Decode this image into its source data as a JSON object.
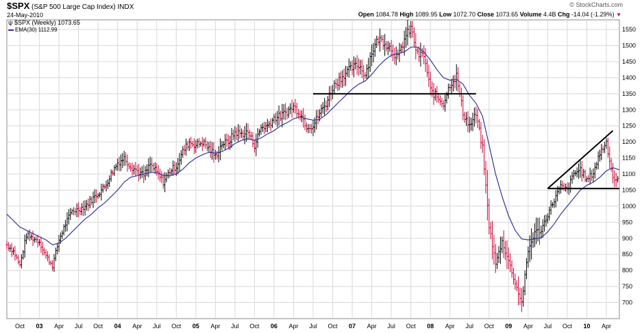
{
  "header": {
    "symbol": "$SPX",
    "name": "(S&P 500 Large Cap Index)",
    "exchange": "INDX",
    "date": "24-May-2010",
    "brand": "© StockCharts.com",
    "open_label": "Open",
    "open_value": "1084.78",
    "high_label": "High",
    "high_value": "1089.95",
    "low_label": "Low",
    "low_value": "1072.70",
    "close_label": "Close",
    "close_value": "1073.65",
    "volume_label": "Volume",
    "volume_value": "4.4B",
    "chg_label": "Chg",
    "chg_value": "-14.04 (-1.29%)",
    "chg_marker": "▼"
  },
  "legend": {
    "price": "$SPX (Weekly) 1073.65",
    "ema": "EMA(30) 1112.99"
  },
  "colors": {
    "up_bar": "#000000",
    "down_bar": "#cc0033",
    "ema": "#333399",
    "grid": "#d8d8d8",
    "trendline": "#000000"
  },
  "chart_data": {
    "type": "line",
    "frequency": "weekly",
    "ylim": [
      650,
      1580
    ],
    "yticks": [
      700,
      750,
      800,
      850,
      900,
      950,
      1000,
      1050,
      1100,
      1150,
      1200,
      1250,
      1300,
      1350,
      1400,
      1450,
      1500,
      1550
    ],
    "grid": true,
    "x_tick_labels": [
      "Oct",
      "03",
      "Apr",
      "Jul",
      "Oct",
      "04",
      "Apr",
      "Jul",
      "Oct",
      "05",
      "Apr",
      "Jul",
      "Oct",
      "06",
      "Apr",
      "Jul",
      "Oct",
      "07",
      "Apr",
      "Jul",
      "Oct",
      "08",
      "Apr",
      "Jul",
      "Oct",
      "09",
      "Apr",
      "Jul",
      "Oct",
      "10",
      "Apr"
    ],
    "x_tick_dates": [
      "2002-10",
      "2003-01",
      "2003-04",
      "2003-07",
      "2003-10",
      "2004-01",
      "2004-04",
      "2004-07",
      "2004-10",
      "2005-01",
      "2005-04",
      "2005-07",
      "2005-10",
      "2006-01",
      "2006-04",
      "2006-07",
      "2006-10",
      "2007-01",
      "2007-04",
      "2007-07",
      "2007-10",
      "2008-01",
      "2008-04",
      "2008-07",
      "2008-10",
      "2009-01",
      "2009-04",
      "2009-07",
      "2009-10",
      "2010-01",
      "2010-04"
    ],
    "xlim": [
      "2002-08",
      "2010-06"
    ],
    "price_path": [
      [
        "2002-08",
        880
      ],
      [
        "2002-09",
        860
      ],
      [
        "2002-10",
        815
      ],
      [
        "2002-11",
        910
      ],
      [
        "2002-12",
        900
      ],
      [
        "2003-01",
        890
      ],
      [
        "2003-02",
        845
      ],
      [
        "2003-03",
        815
      ],
      [
        "2003-04",
        895
      ],
      [
        "2003-05",
        945
      ],
      [
        "2003-06",
        985
      ],
      [
        "2003-07",
        990
      ],
      [
        "2003-08",
        1000
      ],
      [
        "2003-09",
        1020
      ],
      [
        "2003-10",
        1040
      ],
      [
        "2003-11",
        1060
      ],
      [
        "2003-12",
        1100
      ],
      [
        "2004-01",
        1135
      ],
      [
        "2004-02",
        1150
      ],
      [
        "2004-03",
        1125
      ],
      [
        "2004-04",
        1110
      ],
      [
        "2004-05",
        1095
      ],
      [
        "2004-06",
        1130
      ],
      [
        "2004-07",
        1105
      ],
      [
        "2004-08",
        1075
      ],
      [
        "2004-09",
        1110
      ],
      [
        "2004-10",
        1125
      ],
      [
        "2004-11",
        1170
      ],
      [
        "2004-12",
        1200
      ],
      [
        "2005-01",
        1190
      ],
      [
        "2005-02",
        1200
      ],
      [
        "2005-03",
        1180
      ],
      [
        "2005-04",
        1155
      ],
      [
        "2005-05",
        1195
      ],
      [
        "2005-06",
        1200
      ],
      [
        "2005-07",
        1230
      ],
      [
        "2005-08",
        1225
      ],
      [
        "2005-09",
        1230
      ],
      [
        "2005-10",
        1190
      ],
      [
        "2005-11",
        1245
      ],
      [
        "2005-12",
        1250
      ],
      [
        "2006-01",
        1275
      ],
      [
        "2006-02",
        1280
      ],
      [
        "2006-03",
        1295
      ],
      [
        "2006-04",
        1310
      ],
      [
        "2006-05",
        1290
      ],
      [
        "2006-06",
        1250
      ],
      [
        "2006-07",
        1250
      ],
      [
        "2006-08",
        1290
      ],
      [
        "2006-09",
        1320
      ],
      [
        "2006-10",
        1370
      ],
      [
        "2006-11",
        1395
      ],
      [
        "2006-12",
        1415
      ],
      [
        "2007-01",
        1430
      ],
      [
        "2007-02",
        1440
      ],
      [
        "2007-03",
        1410
      ],
      [
        "2007-04",
        1480
      ],
      [
        "2007-05",
        1520
      ],
      [
        "2007-06",
        1510
      ],
      [
        "2007-07",
        1490
      ],
      [
        "2007-08",
        1460
      ],
      [
        "2007-09",
        1520
      ],
      [
        "2007-10",
        1555
      ],
      [
        "2007-11",
        1470
      ],
      [
        "2007-12",
        1470
      ],
      [
        "2008-01",
        1360
      ],
      [
        "2008-02",
        1340
      ],
      [
        "2008-03",
        1320
      ],
      [
        "2008-04",
        1380
      ],
      [
        "2008-05",
        1405
      ],
      [
        "2008-06",
        1290
      ],
      [
        "2008-07",
        1250
      ],
      [
        "2008-08",
        1285
      ],
      [
        "2008-09",
        1180
      ],
      [
        "2008-10",
        940
      ],
      [
        "2008-11",
        820
      ],
      [
        "2008-12",
        890
      ],
      [
        "2009-01",
        830
      ],
      [
        "2009-02",
        760
      ],
      [
        "2009-03",
        700
      ],
      [
        "2009-04",
        860
      ],
      [
        "2009-05",
        920
      ],
      [
        "2009-06",
        925
      ],
      [
        "2009-07",
        975
      ],
      [
        "2009-08",
        1020
      ],
      [
        "2009-09",
        1060
      ],
      [
        "2009-10",
        1050
      ],
      [
        "2009-11",
        1100
      ],
      [
        "2009-12",
        1115
      ],
      [
        "2010-01",
        1080
      ],
      [
        "2010-02",
        1105
      ],
      [
        "2010-03",
        1165
      ],
      [
        "2010-04",
        1200
      ],
      [
        "2010-05",
        1090
      ],
      [
        "2010-06",
        1074
      ]
    ],
    "ema_path": [
      [
        "2002-08",
        975
      ],
      [
        "2002-09",
        955
      ],
      [
        "2002-10",
        935
      ],
      [
        "2002-11",
        925
      ],
      [
        "2002-12",
        915
      ],
      [
        "2003-01",
        905
      ],
      [
        "2003-02",
        895
      ],
      [
        "2003-03",
        880
      ],
      [
        "2003-04",
        885
      ],
      [
        "2003-05",
        900
      ],
      [
        "2003-06",
        920
      ],
      [
        "2003-07",
        940
      ],
      [
        "2003-08",
        960
      ],
      [
        "2003-09",
        975
      ],
      [
        "2003-10",
        995
      ],
      [
        "2003-11",
        1010
      ],
      [
        "2003-12",
        1030
      ],
      [
        "2004-01",
        1050
      ],
      [
        "2004-02",
        1075
      ],
      [
        "2004-03",
        1090
      ],
      [
        "2004-04",
        1095
      ],
      [
        "2004-05",
        1100
      ],
      [
        "2004-06",
        1105
      ],
      [
        "2004-07",
        1105
      ],
      [
        "2004-08",
        1095
      ],
      [
        "2004-09",
        1095
      ],
      [
        "2004-10",
        1100
      ],
      [
        "2004-11",
        1115
      ],
      [
        "2004-12",
        1135
      ],
      [
        "2005-01",
        1150
      ],
      [
        "2005-02",
        1160
      ],
      [
        "2005-03",
        1168
      ],
      [
        "2005-04",
        1165
      ],
      [
        "2005-05",
        1170
      ],
      [
        "2005-06",
        1180
      ],
      [
        "2005-07",
        1195
      ],
      [
        "2005-08",
        1205
      ],
      [
        "2005-09",
        1210
      ],
      [
        "2005-10",
        1205
      ],
      [
        "2005-11",
        1212
      ],
      [
        "2005-12",
        1225
      ],
      [
        "2006-01",
        1235
      ],
      [
        "2006-02",
        1250
      ],
      [
        "2006-03",
        1260
      ],
      [
        "2006-04",
        1272
      ],
      [
        "2006-05",
        1278
      ],
      [
        "2006-06",
        1272
      ],
      [
        "2006-07",
        1268
      ],
      [
        "2006-08",
        1270
      ],
      [
        "2006-09",
        1285
      ],
      [
        "2006-10",
        1305
      ],
      [
        "2006-11",
        1325
      ],
      [
        "2006-12",
        1345
      ],
      [
        "2007-01",
        1365
      ],
      [
        "2007-02",
        1380
      ],
      [
        "2007-03",
        1390
      ],
      [
        "2007-04",
        1410
      ],
      [
        "2007-05",
        1435
      ],
      [
        "2007-06",
        1455
      ],
      [
        "2007-07",
        1470
      ],
      [
        "2007-08",
        1475
      ],
      [
        "2007-09",
        1480
      ],
      [
        "2007-10",
        1495
      ],
      [
        "2007-11",
        1495
      ],
      [
        "2007-12",
        1480
      ],
      [
        "2008-01",
        1455
      ],
      [
        "2008-02",
        1425
      ],
      [
        "2008-03",
        1400
      ],
      [
        "2008-04",
        1392
      ],
      [
        "2008-05",
        1395
      ],
      [
        "2008-06",
        1380
      ],
      [
        "2008-07",
        1345
      ],
      [
        "2008-08",
        1320
      ],
      [
        "2008-09",
        1280
      ],
      [
        "2008-10",
        1190
      ],
      [
        "2008-11",
        1100
      ],
      [
        "2008-12",
        1030
      ],
      [
        "2009-01",
        970
      ],
      [
        "2009-02",
        925
      ],
      [
        "2009-03",
        898
      ],
      [
        "2009-04",
        895
      ],
      [
        "2009-05",
        898
      ],
      [
        "2009-06",
        902
      ],
      [
        "2009-07",
        920
      ],
      [
        "2009-08",
        945
      ],
      [
        "2009-09",
        975
      ],
      [
        "2009-10",
        1000
      ],
      [
        "2009-11",
        1025
      ],
      [
        "2009-12",
        1050
      ],
      [
        "2010-01",
        1065
      ],
      [
        "2010-02",
        1075
      ],
      [
        "2010-03",
        1090
      ],
      [
        "2010-04",
        1110
      ],
      [
        "2010-05",
        1120
      ],
      [
        "2010-06",
        1113
      ]
    ],
    "trendlines": [
      {
        "name": "resistance-2007",
        "from": [
          "2006-07",
          1350
        ],
        "to": [
          "2008-08",
          1350
        ]
      },
      {
        "name": "wedge-upper",
        "from": [
          "2009-07",
          1055
        ],
        "to": [
          "2010-05",
          1235
        ]
      },
      {
        "name": "wedge-lower",
        "from": [
          "2009-07",
          1055
        ],
        "to": [
          "2010-06",
          1055
        ]
      }
    ]
  }
}
